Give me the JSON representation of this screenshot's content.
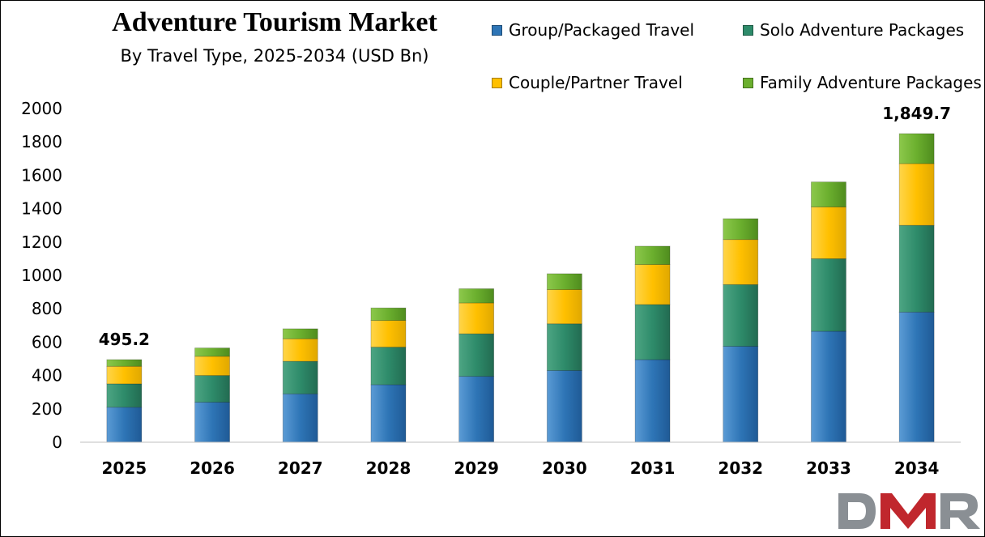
{
  "header": {
    "title": "Adventure Tourism Market",
    "subtitle": "By Travel Type, 2025-2034 (USD Bn)"
  },
  "colors": {
    "group": "#2E75B6",
    "solo": "#2E8B6A",
    "couple": "#FFC000",
    "family": "#6BAF2E"
  },
  "logo": {
    "text": "DMR"
  },
  "chart_data": {
    "type": "bar",
    "stacked": true,
    "categories": [
      "2025",
      "2026",
      "2027",
      "2028",
      "2029",
      "2030",
      "2031",
      "2032",
      "2033",
      "2034"
    ],
    "series": [
      {
        "name": "Group/Packaged Travel",
        "values": [
          210,
          240,
          290,
          345,
          395,
          430,
          495,
          575,
          665,
          780
        ]
      },
      {
        "name": "Solo Adventure Packages",
        "values": [
          140,
          160,
          195,
          225,
          255,
          280,
          330,
          370,
          435,
          520
        ]
      },
      {
        "name": "Couple/Partner Travel",
        "values": [
          105,
          115,
          135,
          160,
          185,
          205,
          240,
          270,
          310,
          370
        ]
      },
      {
        "name": "Family Adventure Packages",
        "values": [
          40.2,
          50,
          60,
          75,
          85,
          95,
          110,
          125,
          150,
          179.7
        ]
      }
    ],
    "annotations": [
      {
        "category": "2025",
        "text": "495.2"
      },
      {
        "category": "2034",
        "text": "1,849.7"
      }
    ],
    "ylim": [
      0,
      2000
    ],
    "yticks": [
      0,
      200,
      400,
      600,
      800,
      1000,
      1200,
      1400,
      1600,
      1800,
      2000
    ],
    "legend_position": "top-right",
    "grid": false
  }
}
